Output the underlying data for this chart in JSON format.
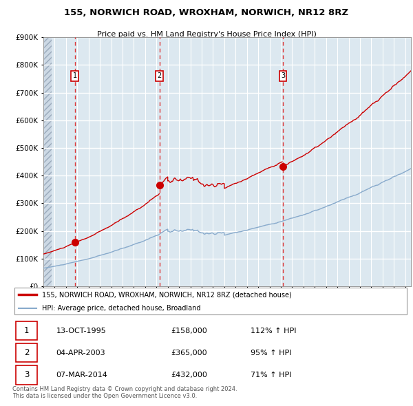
{
  "title": "155, NORWICH ROAD, WROXHAM, NORWICH, NR12 8RZ",
  "subtitle": "Price paid vs. HM Land Registry's House Price Index (HPI)",
  "legend_line1": "155, NORWICH ROAD, WROXHAM, NORWICH, NR12 8RZ (detached house)",
  "legend_line2": "HPI: Average price, detached house, Broadland",
  "footer": "Contains HM Land Registry data © Crown copyright and database right 2024.\nThis data is licensed under the Open Government Licence v3.0.",
  "ylim": [
    0,
    900000
  ],
  "yticks": [
    0,
    100000,
    200000,
    300000,
    400000,
    500000,
    600000,
    700000,
    800000,
    900000
  ],
  "xmin": 1993.0,
  "xmax": 2025.5,
  "sale_dates": [
    1995.79,
    2003.26,
    2014.18
  ],
  "sale_prices": [
    158000,
    365000,
    432000
  ],
  "sale_labels": [
    "1",
    "2",
    "3"
  ],
  "sale_info": [
    {
      "num": "1",
      "date": "13-OCT-1995",
      "price": "£158,000",
      "hpi": "112% ↑ HPI"
    },
    {
      "num": "2",
      "date": "04-APR-2003",
      "price": "£365,000",
      "hpi": "95% ↑ HPI"
    },
    {
      "num": "3",
      "date": "07-MAR-2014",
      "price": "£432,000",
      "hpi": "71% ↑ HPI"
    }
  ],
  "plot_bg": "#dce8f0",
  "grid_color": "#ffffff",
  "red_line_color": "#cc0000",
  "blue_line_color": "#88aacc",
  "dashed_color": "#dd2222",
  "sale_box_color": "#cc0000",
  "hatch_xmax": 1993.75
}
